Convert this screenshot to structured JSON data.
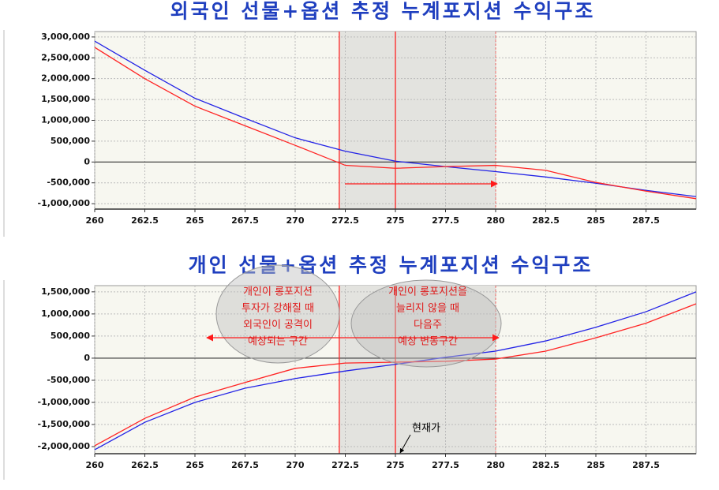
{
  "chart_data": [
    {
      "type": "line",
      "title": "외국인 선물+옵션 추정 누계포지션 수익구조",
      "x": [
        260,
        262.5,
        265,
        267.5,
        270,
        272.5,
        275,
        277.5,
        280,
        282.5,
        285,
        287.5,
        290
      ],
      "series": [
        {
          "color": "#2323e6",
          "values": [
            2900000,
            2200000,
            1530000,
            1050000,
            580000,
            260000,
            20000,
            -110000,
            -230000,
            -360000,
            -510000,
            -680000,
            -830000
          ]
        },
        {
          "color": "#ff2424",
          "values": [
            2750000,
            2000000,
            1340000,
            870000,
            400000,
            -80000,
            -150000,
            -110000,
            -80000,
            -200000,
            -490000,
            -700000,
            -880000
          ]
        }
      ],
      "xlim": [
        260,
        290
      ],
      "ylim": [
        -1130000,
        3130000
      ],
      "xticks": [
        260,
        262.5,
        265,
        267.5,
        270,
        272.5,
        275,
        277.5,
        280,
        282.5,
        285,
        287.5
      ],
      "yticks": [
        {
          "value": 3000000,
          "label": "3,000,000"
        },
        {
          "value": 2500000,
          "label": "2,500,000"
        },
        {
          "value": 2000000,
          "label": "2,000,000"
        },
        {
          "value": 1500000,
          "label": "1,500,000"
        },
        {
          "value": 1000000,
          "label": "1,000,000"
        },
        {
          "value": 500000,
          "label": "500,000"
        },
        0,
        {
          "value": -500000,
          "label": "-500,000"
        },
        {
          "value": -1000000,
          "label": "-1,000,000"
        }
      ],
      "grid": true,
      "shaded_range": [
        272.2,
        280
      ],
      "markers": [
        272.2,
        275
      ],
      "marker_color": "#ff2424"
    },
    {
      "type": "line",
      "title": "개인 선물+옵션 추정 누계포지션 수익구조",
      "x": [
        260,
        262.5,
        265,
        267.5,
        270,
        272.5,
        275,
        277.5,
        280,
        282.5,
        285,
        287.5,
        290
      ],
      "series": [
        {
          "color": "#2323e6",
          "values": [
            -2070000,
            -1450000,
            -1000000,
            -680000,
            -460000,
            -290000,
            -140000,
            20000,
            160000,
            390000,
            700000,
            1050000,
            1500000
          ]
        },
        {
          "color": "#ff2424",
          "values": [
            -1980000,
            -1360000,
            -880000,
            -550000,
            -230000,
            -110000,
            -90000,
            -70000,
            -20000,
            160000,
            460000,
            790000,
            1230000
          ]
        }
      ],
      "xlim": [
        260,
        290
      ],
      "ylim": [
        -2160000,
        1640000
      ],
      "xticks": [
        260,
        262.5,
        265,
        267.5,
        270,
        272.5,
        275,
        277.5,
        280,
        282.5,
        285,
        287.5
      ],
      "yticks": [
        {
          "value": 1500000,
          "label": "1,500,000"
        },
        {
          "value": 1000000,
          "label": "1,000,000"
        },
        {
          "value": 500000,
          "label": "500,000"
        },
        0,
        {
          "value": -500000,
          "label": "-500,000"
        },
        {
          "value": -1000000,
          "label": "-1,000,000"
        },
        {
          "value": -1500000,
          "label": "-1,500,000"
        },
        {
          "value": -2000000,
          "label": "-2,000,000"
        }
      ],
      "grid": true,
      "shaded_range": [
        272.2,
        280
      ],
      "markers": [
        272.2,
        275
      ],
      "marker_color": "#ff2424",
      "notes": [
        [
          "개인이 롱포지션",
          "투자가 강해질 때",
          "외국인이 공격이",
          "예상되는 구간"
        ],
        [
          "개인이 롱포지션을",
          "늘리지 않을 때",
          "다음주",
          "예상 변동구간"
        ]
      ],
      "current_price_label": "현재가"
    }
  ]
}
